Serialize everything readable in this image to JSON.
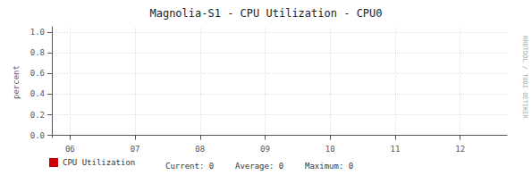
{
  "chart_data": {
    "type": "line",
    "title": "Magnolia-S1 - CPU Utilization - CPU0",
    "ylabel": "percent",
    "x": [],
    "series": [
      {
        "name": "CPU Utilization",
        "color": "#cc0000",
        "values": []
      }
    ],
    "xlim": [
      5.72,
      12.72
    ],
    "xticks": [
      {
        "value": 6,
        "label": "06"
      },
      {
        "value": 7,
        "label": "07"
      },
      {
        "value": 8,
        "label": "08"
      },
      {
        "value": 9,
        "label": "09"
      },
      10,
      11,
      12
    ],
    "ylim": [
      -0.02,
      1.05
    ],
    "yticks": [
      {
        "value": 0,
        "label": "0.0"
      },
      0.2,
      0.4,
      0.6,
      0.8,
      {
        "value": 1,
        "label": "1.0"
      }
    ],
    "grid": true,
    "legend": "lower left",
    "annotations": [
      "Current: 0",
      "Average: 0",
      "Maximum: 0",
      "RRDTOOL / TOBI OETIKER"
    ]
  }
}
